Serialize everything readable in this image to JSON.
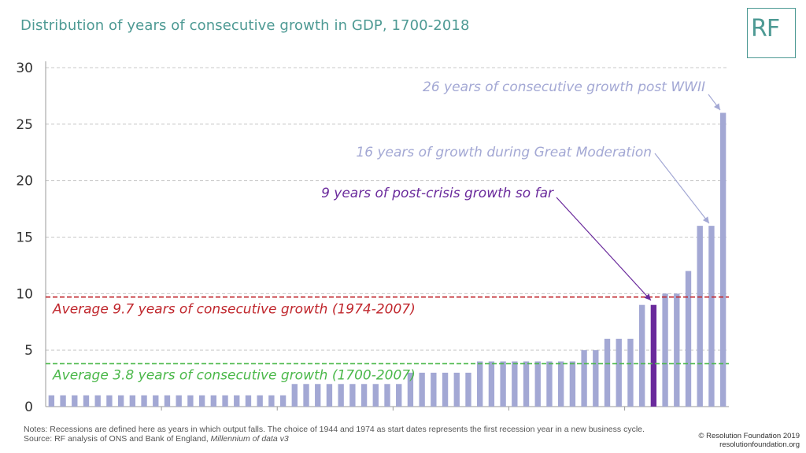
{
  "title": "Distribution of years of consecutive growth in GDP, 1700-2018",
  "logo": "RF",
  "colors": {
    "bar": "#a3a8d4",
    "highlight": "#6a2a9c",
    "avg_recent": "#c0272d",
    "avg_long": "#4bb84a",
    "title": "#4e9a94"
  },
  "chart_data": {
    "type": "bar",
    "ylim": [
      0,
      30
    ],
    "yticks": [
      0,
      5,
      10,
      15,
      20,
      25,
      30
    ],
    "values": [
      1,
      1,
      1,
      1,
      1,
      1,
      1,
      1,
      1,
      1,
      1,
      1,
      1,
      1,
      1,
      1,
      1,
      1,
      1,
      1,
      1,
      2,
      2,
      2,
      2,
      2,
      2,
      2,
      2,
      2,
      2,
      3,
      3,
      3,
      3,
      3,
      3,
      4,
      4,
      4,
      4,
      4,
      4,
      4,
      4,
      4,
      5,
      5,
      6,
      6,
      6,
      9,
      9,
      10,
      10,
      12,
      16,
      16,
      26
    ],
    "highlight_index": 52,
    "reference_lines": [
      {
        "value": 9.7,
        "label": "Average 9.7 years of consecutive growth (1974-2007)",
        "color": "#c0272d"
      },
      {
        "value": 3.8,
        "label": "Average 3.8 years of consecutive growth (1700-2007)",
        "color": "#4bb84a"
      }
    ],
    "annotations": [
      {
        "text": "26 years of consecutive growth post WWII",
        "bar_index": 58,
        "color": "#a3a8d4"
      },
      {
        "text": "16 years of growth during Great Moderation",
        "bar_index": 57,
        "color": "#a3a8d4"
      },
      {
        "text": "9 years of post-crisis growth so far",
        "bar_index": 52,
        "color": "#6a2a9c"
      }
    ]
  },
  "notes": {
    "line1": "Notes: Recessions are defined here as years in which output falls. The choice of 1944 and 1974 as start dates represents the first recession year in a new business cycle.",
    "line2_prefix": "Source: RF analysis of ONS and Bank of England, ",
    "line2_italic": "Millennium of data v3"
  },
  "copyright": {
    "line1": "© Resolution Foundation 2019",
    "line2": "resolutionfoundation.org"
  }
}
